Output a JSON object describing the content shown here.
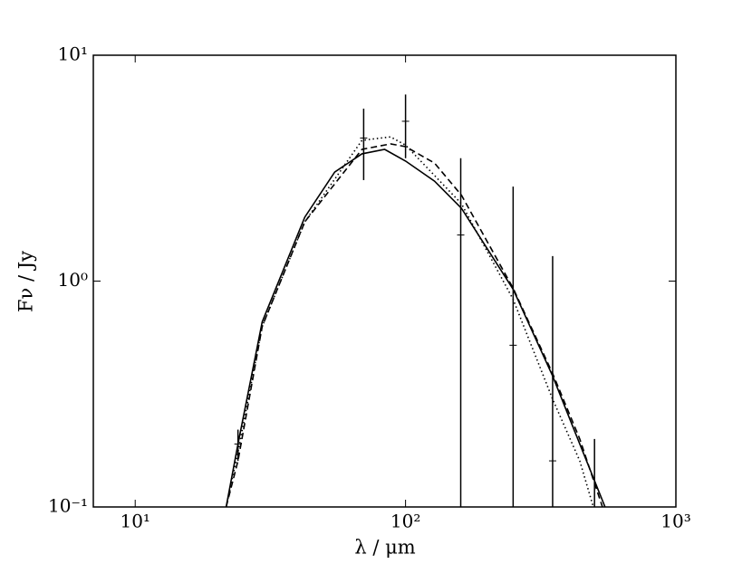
{
  "chart_data": {
    "type": "line",
    "x_label": "λ / μm",
    "y_label": "Fν / Jy",
    "xscale": "log",
    "yscale": "log",
    "xlim": [
      7,
      1000
    ],
    "ylim": [
      0.1,
      10
    ],
    "xticks": [
      {
        "value": 10,
        "label": "10¹"
      },
      {
        "value": 100,
        "label": "10²"
      },
      {
        "value": 1000,
        "label": "10³"
      }
    ],
    "yticks": [
      {
        "value": 0.1,
        "label": "10⁻¹"
      },
      {
        "value": 1,
        "label": "10⁰"
      },
      {
        "value": 10,
        "label": "10¹"
      }
    ],
    "series": [
      {
        "color": "#000000",
        "style": "solid",
        "x": [
          21.7,
          24,
          29.5,
          42.4,
          54.7,
          69,
          83.7,
          100,
          128,
          161,
          250,
          350,
          441,
          547
        ],
        "values": [
          0.1,
          0.19,
          0.66,
          1.92,
          3.04,
          3.66,
          3.83,
          3.4,
          2.77,
          2.1,
          0.92,
          0.38,
          0.19,
          0.1
        ]
      },
      {
        "color": "#000000",
        "style": "dashed",
        "x": [
          21.7,
          24,
          29.5,
          42.4,
          69,
          88,
          100,
          128,
          161,
          250,
          350,
          441,
          535
        ],
        "values": [
          0.1,
          0.16,
          0.63,
          1.83,
          3.83,
          4.05,
          3.94,
          3.33,
          2.4,
          0.93,
          0.39,
          0.2,
          0.1
        ]
      },
      {
        "color": "#000000",
        "style": "dotted",
        "x": [
          21.7,
          24,
          29.5,
          42.4,
          69,
          88,
          100,
          161,
          250,
          350,
          441,
          495
        ],
        "values": [
          0.1,
          0.175,
          0.63,
          1.83,
          4.2,
          4.35,
          4.0,
          2.2,
          0.83,
          0.3,
          0.16,
          0.1
        ]
      }
    ],
    "points": {
      "color": "#000000",
      "x": [
        24,
        70,
        100,
        160,
        250,
        350,
        500
      ],
      "values": [
        0.19,
        4.3,
        5.1,
        1.6,
        0.52,
        0.16,
        0.1
      ],
      "errors": [
        0.03,
        1.5,
        1.6,
        1.9,
        2.1,
        1.13,
        0.1
      ]
    }
  }
}
